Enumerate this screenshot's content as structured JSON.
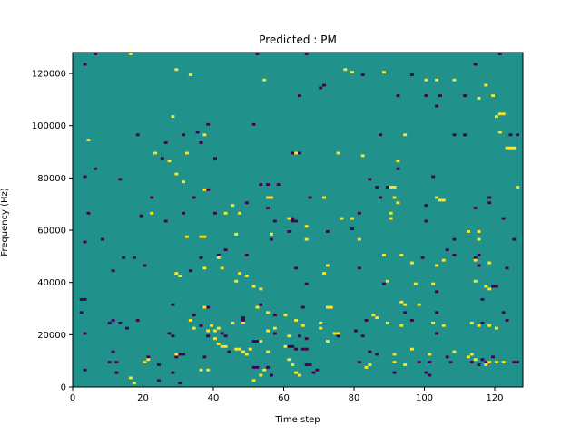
{
  "chart_data": {
    "type": "heatmap",
    "title": "Predicted : PM",
    "xlabel": "Time step",
    "ylabel": "Frequency (Hz)",
    "xlim": [
      0,
      128
    ],
    "ylim": [
      0,
      128000
    ],
    "x_ticks": [
      0,
      20,
      40,
      60,
      80,
      100,
      120
    ],
    "y_ticks": [
      0,
      20000,
      40000,
      60000,
      80000,
      100000,
      120000
    ],
    "n_time_steps": 128,
    "n_freq_bins": 128,
    "colormap": "viridis",
    "colors": {
      "background": "#21918c",
      "low": "#440154",
      "high": "#fde725"
    },
    "grid": false,
    "cells_low": [
      [
        3,
        123000
      ],
      [
        6,
        127000
      ],
      [
        52,
        127000
      ],
      [
        66,
        127000
      ],
      [
        114,
        123000
      ],
      [
        121,
        127000
      ],
      [
        96,
        119000
      ],
      [
        82,
        119000
      ],
      [
        71,
        115000
      ],
      [
        70,
        114000
      ],
      [
        64,
        111000
      ],
      [
        92,
        111000
      ],
      [
        100,
        111000
      ],
      [
        104,
        111000
      ],
      [
        111,
        111000
      ],
      [
        103,
        107000
      ],
      [
        38,
        100000
      ],
      [
        51,
        100000
      ],
      [
        35,
        97000
      ],
      [
        18,
        96000
      ],
      [
        31,
        96000
      ],
      [
        87,
        96000
      ],
      [
        108,
        96000
      ],
      [
        111,
        96000
      ],
      [
        124,
        96000
      ],
      [
        126,
        96000
      ],
      [
        26,
        93000
      ],
      [
        36,
        93000
      ],
      [
        62,
        89000
      ],
      [
        63,
        89000
      ],
      [
        64,
        89000
      ],
      [
        25,
        87000
      ],
      [
        40,
        87000
      ],
      [
        6,
        83000
      ],
      [
        92,
        83000
      ],
      [
        3,
        80000
      ],
      [
        102,
        80000
      ],
      [
        84,
        79000
      ],
      [
        13,
        79000
      ],
      [
        53,
        77000
      ],
      [
        55,
        77000
      ],
      [
        58,
        77000
      ],
      [
        86,
        76000
      ],
      [
        89,
        76000
      ],
      [
        38,
        75000
      ],
      [
        34,
        72000
      ],
      [
        22,
        72000
      ],
      [
        87,
        72000
      ],
      [
        67,
        72000
      ],
      [
        100,
        69000
      ],
      [
        114,
        68000
      ],
      [
        118,
        72000
      ],
      [
        49,
        70000
      ],
      [
        55,
        68000
      ],
      [
        118,
        72000
      ],
      [
        118,
        70000
      ],
      [
        4,
        66000
      ],
      [
        19,
        65000
      ],
      [
        31,
        66000
      ],
      [
        40,
        66000
      ],
      [
        81,
        66000
      ],
      [
        62,
        64000
      ],
      [
        122,
        64000
      ],
      [
        57,
        63000
      ],
      [
        62,
        63000
      ],
      [
        63,
        63000
      ],
      [
        26,
        63000
      ],
      [
        100,
        63000
      ],
      [
        79,
        60000
      ],
      [
        61,
        59000
      ],
      [
        72,
        59000
      ],
      [
        8,
        56000
      ],
      [
        125,
        56000
      ],
      [
        3,
        55000
      ],
      [
        56,
        56000
      ],
      [
        8,
        56000
      ],
      [
        108,
        56000
      ],
      [
        43,
        52000
      ],
      [
        106,
        52000
      ],
      [
        41,
        50000
      ],
      [
        49,
        50000
      ],
      [
        108,
        50000
      ],
      [
        115,
        50000
      ],
      [
        36,
        49000
      ],
      [
        114,
        49000
      ],
      [
        14,
        49000
      ],
      [
        17,
        49000
      ],
      [
        99,
        49000
      ],
      [
        20,
        46000
      ],
      [
        115,
        46000
      ],
      [
        11,
        44000
      ],
      [
        33,
        44000
      ],
      [
        63,
        45000
      ],
      [
        81,
        45000
      ],
      [
        123,
        45000
      ],
      [
        66,
        39000
      ],
      [
        88,
        39000
      ],
      [
        120,
        38000
      ],
      [
        119,
        38000
      ],
      [
        103,
        36000
      ],
      [
        116,
        33000
      ],
      [
        2,
        33000
      ],
      [
        3,
        33000
      ],
      [
        28,
        31000
      ],
      [
        53,
        31000
      ],
      [
        38,
        30000
      ],
      [
        65,
        30000
      ],
      [
        94,
        28000
      ],
      [
        103,
        28000
      ],
      [
        122,
        28000
      ],
      [
        57,
        27000
      ],
      [
        34,
        27000
      ],
      [
        18,
        25000
      ],
      [
        48,
        25000
      ],
      [
        83,
        25000
      ],
      [
        96,
        25000
      ],
      [
        123,
        25000
      ],
      [
        116,
        24000
      ],
      [
        10,
        24000
      ],
      [
        11,
        25000
      ],
      [
        13,
        24000
      ],
      [
        15,
        22000
      ],
      [
        36,
        23000
      ],
      [
        42,
        20000
      ],
      [
        28,
        19000
      ],
      [
        38,
        19000
      ],
      [
        43,
        19000
      ],
      [
        51,
        17000
      ],
      [
        52,
        17000
      ],
      [
        66,
        18000
      ],
      [
        75,
        19000
      ],
      [
        103,
        20000
      ],
      [
        80,
        21000
      ],
      [
        57,
        20000
      ],
      [
        82,
        19000
      ],
      [
        64,
        19000
      ],
      [
        27,
        20000
      ],
      [
        61,
        15000
      ],
      [
        62,
        15000
      ],
      [
        63,
        14000
      ],
      [
        65,
        14000
      ],
      [
        66,
        14000
      ],
      [
        11,
        13000
      ],
      [
        44,
        13000
      ],
      [
        84,
        13000
      ],
      [
        86,
        12000
      ],
      [
        21,
        11000
      ],
      [
        30,
        12000
      ],
      [
        31,
        12000
      ],
      [
        37,
        11000
      ],
      [
        29,
        11000
      ],
      [
        116,
        10000
      ],
      [
        10,
        9000
      ],
      [
        12,
        9000
      ],
      [
        24,
        8000
      ],
      [
        51,
        7000
      ],
      [
        52,
        7000
      ],
      [
        55,
        7000
      ],
      [
        66,
        8000
      ],
      [
        67,
        8000
      ],
      [
        81,
        9000
      ],
      [
        98,
        9000
      ],
      [
        115,
        8000
      ],
      [
        117,
        9000
      ],
      [
        119,
        11000
      ],
      [
        125,
        9000
      ],
      [
        126,
        9000
      ],
      [
        101,
        9000
      ],
      [
        107,
        9000
      ],
      [
        113,
        9000
      ],
      [
        106,
        11000
      ],
      [
        3,
        6000
      ],
      [
        68,
        5000
      ],
      [
        91,
        5000
      ],
      [
        100,
        5000
      ],
      [
        101,
        4000
      ],
      [
        69,
        6000
      ],
      [
        56,
        4000
      ],
      [
        30,
        1000
      ],
      [
        24,
        2000
      ],
      [
        28,
        5000
      ],
      [
        12,
        5000
      ],
      [
        2,
        28000
      ],
      [
        3,
        20000
      ],
      [
        48,
        26000
      ]
    ],
    "cells_high": [
      [
        16,
        127000
      ],
      [
        29,
        121000
      ],
      [
        33,
        119000
      ],
      [
        54,
        117000
      ],
      [
        77,
        121000
      ],
      [
        79,
        120000
      ],
      [
        88,
        120000
      ],
      [
        100,
        117000
      ],
      [
        103,
        117000
      ],
      [
        108,
        117000
      ],
      [
        117,
        115000
      ],
      [
        119,
        111000
      ],
      [
        115,
        110000
      ],
      [
        120,
        103000
      ],
      [
        121,
        104000
      ],
      [
        122,
        104000
      ],
      [
        28,
        103000
      ],
      [
        37,
        96000
      ],
      [
        94,
        96000
      ],
      [
        121,
        97000
      ],
      [
        4,
        94000
      ],
      [
        23,
        89000
      ],
      [
        32,
        89000
      ],
      [
        75,
        89000
      ],
      [
        82,
        88000
      ],
      [
        63,
        89000
      ],
      [
        123,
        91000
      ],
      [
        124,
        91000
      ],
      [
        125,
        91000
      ],
      [
        92,
        86000
      ],
      [
        27,
        86000
      ],
      [
        29,
        81000
      ],
      [
        31,
        78000
      ],
      [
        37,
        75000
      ],
      [
        56,
        72000
      ],
      [
        71,
        72000
      ],
      [
        55,
        72000
      ],
      [
        90,
        76000
      ],
      [
        91,
        76000
      ],
      [
        91,
        72000
      ],
      [
        92,
        70000
      ],
      [
        103,
        72000
      ],
      [
        104,
        71000
      ],
      [
        105,
        71000
      ],
      [
        126,
        76000
      ],
      [
        22,
        66000
      ],
      [
        45,
        69000
      ],
      [
        43,
        66000
      ],
      [
        47,
        66000
      ],
      [
        61,
        64000
      ],
      [
        66,
        61000
      ],
      [
        76,
        64000
      ],
      [
        79,
        64000
      ],
      [
        90,
        64000
      ],
      [
        90,
        66000
      ],
      [
        112,
        59000
      ],
      [
        115,
        59000
      ],
      [
        56,
        58000
      ],
      [
        46,
        58000
      ],
      [
        32,
        57000
      ],
      [
        36,
        57000
      ],
      [
        37,
        57000
      ],
      [
        115,
        56000
      ],
      [
        66,
        56000
      ],
      [
        81,
        56000
      ],
      [
        88,
        50000
      ],
      [
        93,
        50000
      ],
      [
        105,
        48000
      ],
      [
        114,
        48000
      ],
      [
        96,
        47000
      ],
      [
        118,
        47000
      ],
      [
        41,
        49000
      ],
      [
        42,
        45000
      ],
      [
        46,
        40000
      ],
      [
        47,
        43000
      ],
      [
        49,
        42000
      ],
      [
        51,
        38000
      ],
      [
        53,
        37000
      ],
      [
        72,
        46000
      ],
      [
        103,
        46000
      ],
      [
        37,
        45000
      ],
      [
        30,
        42000
      ],
      [
        29,
        43000
      ],
      [
        71,
        43000
      ],
      [
        89,
        40000
      ],
      [
        97,
        39000
      ],
      [
        102,
        39000
      ],
      [
        114,
        40000
      ],
      [
        117,
        38000
      ],
      [
        118,
        37000
      ],
      [
        93,
        32000
      ],
      [
        94,
        31000
      ],
      [
        98,
        31000
      ],
      [
        37,
        30000
      ],
      [
        52,
        30000
      ],
      [
        72,
        30000
      ],
      [
        73,
        30000
      ],
      [
        55,
        28000
      ],
      [
        60,
        27000
      ],
      [
        85,
        27000
      ],
      [
        86,
        26000
      ],
      [
        89,
        24000
      ],
      [
        93,
        23000
      ],
      [
        102,
        24000
      ],
      [
        105,
        23000
      ],
      [
        113,
        24000
      ],
      [
        115,
        23000
      ],
      [
        118,
        23000
      ],
      [
        120,
        22000
      ],
      [
        45,
        24000
      ],
      [
        48,
        24000
      ],
      [
        63,
        25000
      ],
      [
        65,
        23000
      ],
      [
        70,
        22000
      ],
      [
        74,
        20000
      ],
      [
        75,
        20000
      ],
      [
        72,
        17000
      ],
      [
        41,
        22000
      ],
      [
        38,
        21000
      ],
      [
        39,
        23000
      ],
      [
        40,
        21000
      ],
      [
        40,
        18000
      ],
      [
        41,
        16000
      ],
      [
        42,
        15000
      ],
      [
        43,
        15000
      ],
      [
        46,
        14000
      ],
      [
        47,
        14000
      ],
      [
        48,
        13000
      ],
      [
        49,
        12000
      ],
      [
        50,
        14000
      ],
      [
        55,
        13000
      ],
      [
        60,
        15000
      ],
      [
        61,
        10000
      ],
      [
        62,
        8000
      ],
      [
        63,
        5000
      ],
      [
        64,
        4000
      ],
      [
        53,
        4000
      ],
      [
        54,
        6000
      ],
      [
        83,
        7000
      ],
      [
        84,
        8000
      ],
      [
        91,
        9000
      ],
      [
        94,
        8000
      ],
      [
        91,
        12000
      ],
      [
        96,
        14000
      ],
      [
        101,
        12000
      ],
      [
        108,
        13000
      ],
      [
        112,
        11000
      ],
      [
        113,
        12000
      ],
      [
        114,
        10000
      ],
      [
        117,
        8000
      ],
      [
        118,
        9000
      ],
      [
        120,
        9000
      ],
      [
        122,
        9000
      ],
      [
        17,
        1000
      ],
      [
        16,
        3000
      ],
      [
        20,
        9000
      ],
      [
        21,
        10000
      ],
      [
        36,
        6000
      ],
      [
        51,
        2000
      ],
      [
        38,
        6000
      ],
      [
        29,
        12000
      ],
      [
        55,
        21000
      ],
      [
        57,
        22000
      ],
      [
        61,
        19000
      ],
      [
        33,
        25000
      ],
      [
        34,
        22000
      ],
      [
        53,
        17000
      ],
      [
        70,
        24000
      ]
    ]
  }
}
